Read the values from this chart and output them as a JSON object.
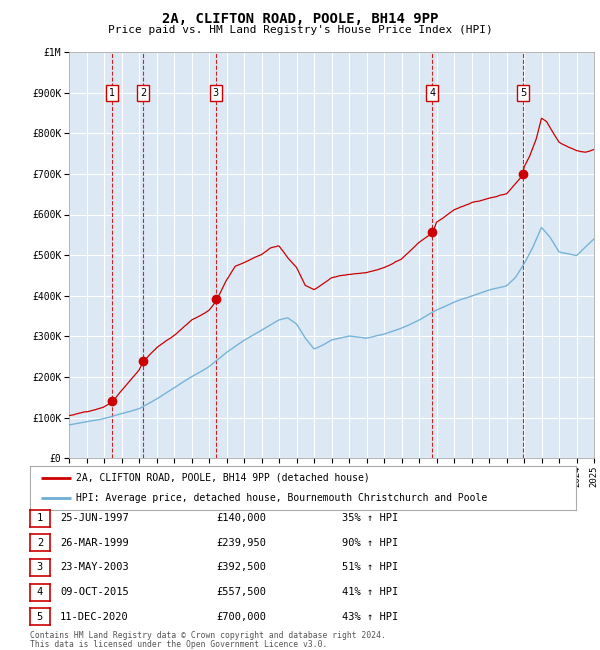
{
  "title": "2A, CLIFTON ROAD, POOLE, BH14 9PP",
  "subtitle": "Price paid vs. HM Land Registry's House Price Index (HPI)",
  "xlim": [
    1995,
    2025
  ],
  "ylim": [
    0,
    1000000
  ],
  "yticks": [
    0,
    100000,
    200000,
    300000,
    400000,
    500000,
    600000,
    700000,
    800000,
    900000,
    1000000
  ],
  "ytick_labels": [
    "£0",
    "£100K",
    "£200K",
    "£300K",
    "£400K",
    "£500K",
    "£600K",
    "£700K",
    "£800K",
    "£900K",
    "£1M"
  ],
  "background_color": "#dce9f5",
  "grid_color": "#ffffff",
  "sales": [
    {
      "num": 1,
      "date": "25-JUN-1997",
      "year": 1997.48,
      "price": 140000,
      "pct": "35%"
    },
    {
      "num": 2,
      "date": "26-MAR-1999",
      "year": 1999.23,
      "price": 239950,
      "pct": "90%"
    },
    {
      "num": 3,
      "date": "23-MAY-2003",
      "year": 2003.39,
      "price": 392500,
      "pct": "51%"
    },
    {
      "num": 4,
      "date": "09-OCT-2015",
      "year": 2015.77,
      "price": 557500,
      "pct": "41%"
    },
    {
      "num": 5,
      "date": "11-DEC-2020",
      "year": 2020.94,
      "price": 700000,
      "pct": "43%"
    }
  ],
  "hpi_color": "#6baed6",
  "price_color": "#cc0000",
  "legend_label_price": "2A, CLIFTON ROAD, POOLE, BH14 9PP (detached house)",
  "legend_label_hpi": "HPI: Average price, detached house, Bournemouth Christchurch and Poole",
  "footer_line1": "Contains HM Land Registry data © Crown copyright and database right 2024.",
  "footer_line2": "This data is licensed under the Open Government Licence v3.0.",
  "table_rows": [
    [
      "1",
      "25-JUN-1997",
      "£140,000",
      "35% ↑ HPI"
    ],
    [
      "2",
      "26-MAR-1999",
      "£239,950",
      "90% ↑ HPI"
    ],
    [
      "3",
      "23-MAY-2003",
      "£392,500",
      "51% ↑ HPI"
    ],
    [
      "4",
      "09-OCT-2015",
      "£557,500",
      "41% ↑ HPI"
    ],
    [
      "5",
      "11-DEC-2020",
      "£700,000",
      "43% ↑ HPI"
    ]
  ]
}
